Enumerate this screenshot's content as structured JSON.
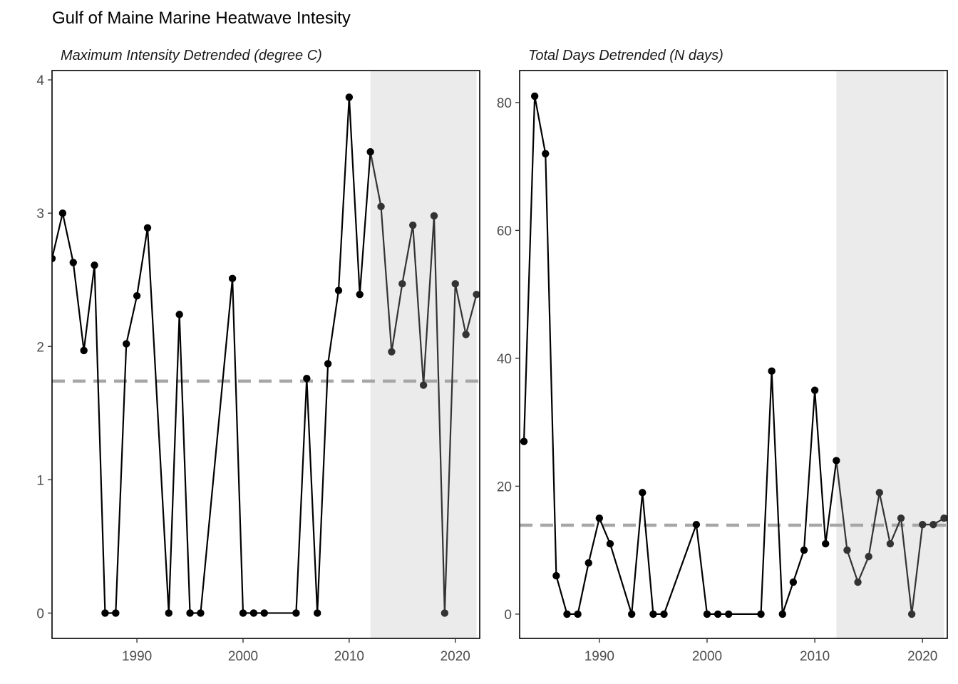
{
  "title": "Gulf of Maine Marine Heatwave Intesity",
  "colors": {
    "line": "#000000",
    "shaded_line": "#333333",
    "shade": "#ebebeb",
    "reference": "#a6a6a6",
    "axis_text": "#4d4d4d"
  },
  "chart_data": [
    {
      "type": "line",
      "panel_title": "Maximum Intensity Detrended (degree C)",
      "xlim": [
        1982,
        2022.3
      ],
      "ylim": [
        -0.19,
        4.07
      ],
      "xticks": [
        1990,
        2000,
        2010,
        2020
      ],
      "yticks": [
        0,
        1,
        2,
        3,
        4
      ],
      "shaded_region": [
        2012,
        2022
      ],
      "reference_line": 1.74,
      "grid": false,
      "series": [
        {
          "x": [
            1982,
            1983,
            1984,
            1985,
            1986,
            1987,
            1988,
            1989,
            1990,
            1991,
            1993,
            1994,
            1995,
            1996,
            1999,
            2000,
            2001,
            2002,
            2005,
            2006,
            2007,
            2008,
            2009,
            2010,
            2011,
            2012,
            2013,
            2014,
            2015,
            2016,
            2017,
            2018,
            2019,
            2020,
            2021,
            2022
          ],
          "y": [
            2.66,
            3.0,
            2.63,
            1.97,
            2.61,
            0,
            0,
            2.02,
            2.38,
            2.89,
            0,
            2.24,
            0,
            0,
            2.51,
            0,
            0,
            0,
            0,
            1.76,
            0,
            1.87,
            2.42,
            3.87,
            2.39,
            3.46,
            3.05,
            1.96,
            2.47,
            2.91,
            1.71,
            2.98,
            0,
            2.47,
            2.09,
            2.39
          ]
        }
      ]
    },
    {
      "type": "line",
      "panel_title": "Total Days Detrended (N days)",
      "xlim": [
        1982.6,
        2022.3
      ],
      "ylim": [
        -3.8,
        85.0
      ],
      "xticks": [
        1990,
        2000,
        2010,
        2020
      ],
      "yticks": [
        0,
        20,
        40,
        60,
        80
      ],
      "shaded_region": [
        2012,
        2022
      ],
      "reference_line": 13.9,
      "grid": false,
      "series": [
        {
          "x": [
            1983,
            1984,
            1985,
            1986,
            1987,
            1988,
            1989,
            1990,
            1991,
            1993,
            1994,
            1995,
            1996,
            1999,
            2000,
            2001,
            2002,
            2005,
            2006,
            2007,
            2008,
            2009,
            2010,
            2011,
            2012,
            2013,
            2014,
            2015,
            2016,
            2017,
            2018,
            2019,
            2020,
            2021,
            2022
          ],
          "y": [
            27,
            81,
            72,
            6,
            0,
            0,
            8,
            15,
            11,
            0,
            19,
            0,
            0,
            14,
            0,
            0,
            0,
            0,
            38,
            0,
            5,
            10,
            35,
            11,
            24,
            10,
            5,
            9,
            19,
            11,
            15,
            0,
            14,
            14,
            15
          ]
        }
      ]
    }
  ]
}
